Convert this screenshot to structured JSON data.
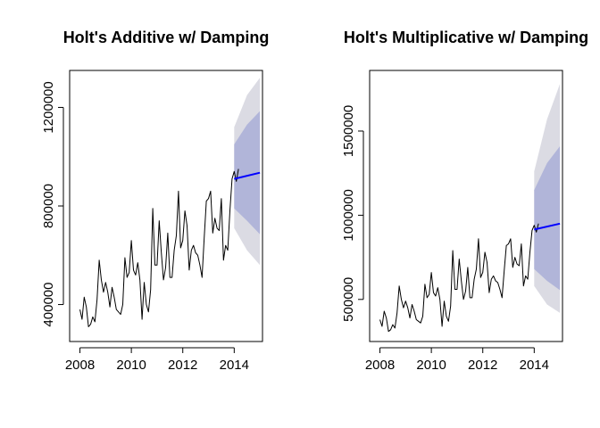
{
  "chart_data": [
    {
      "type": "line",
      "title": "Holt's Additive w/ Damping",
      "xlabel": "",
      "ylabel": "",
      "xlim": [
        2007.6,
        2015.1
      ],
      "ylim": [
        250000,
        1350000
      ],
      "x_ticks": [
        2008,
        2010,
        2012,
        2014
      ],
      "x_tick_labels": [
        "2008",
        "2010",
        "2012",
        "2014"
      ],
      "y_ticks": [
        400000,
        800000,
        1200000
      ],
      "y_tick_labels": [
        "400000",
        "800000",
        "1200000"
      ],
      "grid": false,
      "legend": "none",
      "series": [
        {
          "role": "observed",
          "color": "#000000",
          "x_start": 2008.0,
          "x_step": 0.08333,
          "values": [
            380000,
            340000,
            430000,
            390000,
            310000,
            320000,
            350000,
            330000,
            420000,
            580000,
            500000,
            450000,
            490000,
            450000,
            390000,
            470000,
            430000,
            380000,
            370000,
            360000,
            400000,
            590000,
            510000,
            530000,
            660000,
            540000,
            520000,
            570000,
            500000,
            340000,
            490000,
            400000,
            370000,
            460000,
            790000,
            560000,
            560000,
            740000,
            610000,
            500000,
            550000,
            690000,
            510000,
            510000,
            620000,
            680000,
            860000,
            630000,
            660000,
            780000,
            720000,
            540000,
            620000,
            640000,
            610000,
            600000,
            560000,
            510000,
            670000,
            820000,
            830000,
            860000,
            690000,
            750000,
            710000,
            700000,
            830000,
            580000,
            640000,
            620000,
            780000,
            910000,
            940000,
            900000,
            950000
          ]
        },
        {
          "role": "point-forecast",
          "color": "#0000ff",
          "x": [
            2014.0,
            2015.0
          ],
          "values": [
            910000,
            935000
          ]
        }
      ],
      "intervals": [
        {
          "level": "80%",
          "color": "#b1b5d9",
          "x": [
            2014.0,
            2014.5,
            2015.0
          ],
          "lower": [
            790000,
            740000,
            685000
          ],
          "upper": [
            1050000,
            1130000,
            1185000
          ]
        },
        {
          "level": "95%",
          "color": "#dbdbe3",
          "x": [
            2014.0,
            2014.5,
            2015.0
          ],
          "lower": [
            710000,
            620000,
            560000
          ],
          "upper": [
            1120000,
            1250000,
            1320000
          ]
        }
      ]
    },
    {
      "type": "line",
      "title": "Holt's Multiplicative w/ Damping",
      "xlabel": "",
      "ylabel": "",
      "xlim": [
        2007.6,
        2015.1
      ],
      "ylim": [
        250000,
        1860000
      ],
      "x_ticks": [
        2008,
        2010,
        2012,
        2014
      ],
      "x_tick_labels": [
        "2008",
        "2010",
        "2012",
        "2014"
      ],
      "y_ticks": [
        500000,
        1000000,
        1500000
      ],
      "y_tick_labels": [
        "500000",
        "1000000",
        "1500000"
      ],
      "grid": false,
      "legend": "none",
      "series": [
        {
          "role": "observed",
          "color": "#000000",
          "x_start": 2008.0,
          "x_step": 0.08333,
          "values": [
            380000,
            340000,
            430000,
            390000,
            310000,
            320000,
            350000,
            330000,
            420000,
            580000,
            500000,
            450000,
            490000,
            450000,
            390000,
            470000,
            430000,
            380000,
            370000,
            360000,
            400000,
            590000,
            510000,
            530000,
            660000,
            540000,
            520000,
            570000,
            500000,
            340000,
            490000,
            400000,
            370000,
            460000,
            790000,
            560000,
            560000,
            740000,
            610000,
            500000,
            550000,
            690000,
            510000,
            510000,
            620000,
            680000,
            860000,
            630000,
            660000,
            780000,
            720000,
            540000,
            620000,
            640000,
            610000,
            600000,
            560000,
            510000,
            670000,
            820000,
            830000,
            860000,
            690000,
            750000,
            710000,
            700000,
            830000,
            580000,
            640000,
            620000,
            780000,
            910000,
            940000,
            900000,
            950000
          ]
        },
        {
          "role": "point-forecast",
          "color": "#0000ff",
          "x": [
            2014.0,
            2015.0
          ],
          "values": [
            915000,
            950000
          ]
        }
      ],
      "intervals": [
        {
          "level": "80%",
          "color": "#b1b5d9",
          "x": [
            2014.0,
            2014.5,
            2015.0
          ],
          "lower": [
            680000,
            610000,
            555000
          ],
          "upper": [
            1150000,
            1310000,
            1410000
          ]
        },
        {
          "level": "95%",
          "color": "#dbdbe3",
          "x": [
            2014.0,
            2014.5,
            2015.0
          ],
          "lower": [
            580000,
            470000,
            420000
          ],
          "upper": [
            1260000,
            1570000,
            1780000
          ]
        }
      ]
    }
  ]
}
